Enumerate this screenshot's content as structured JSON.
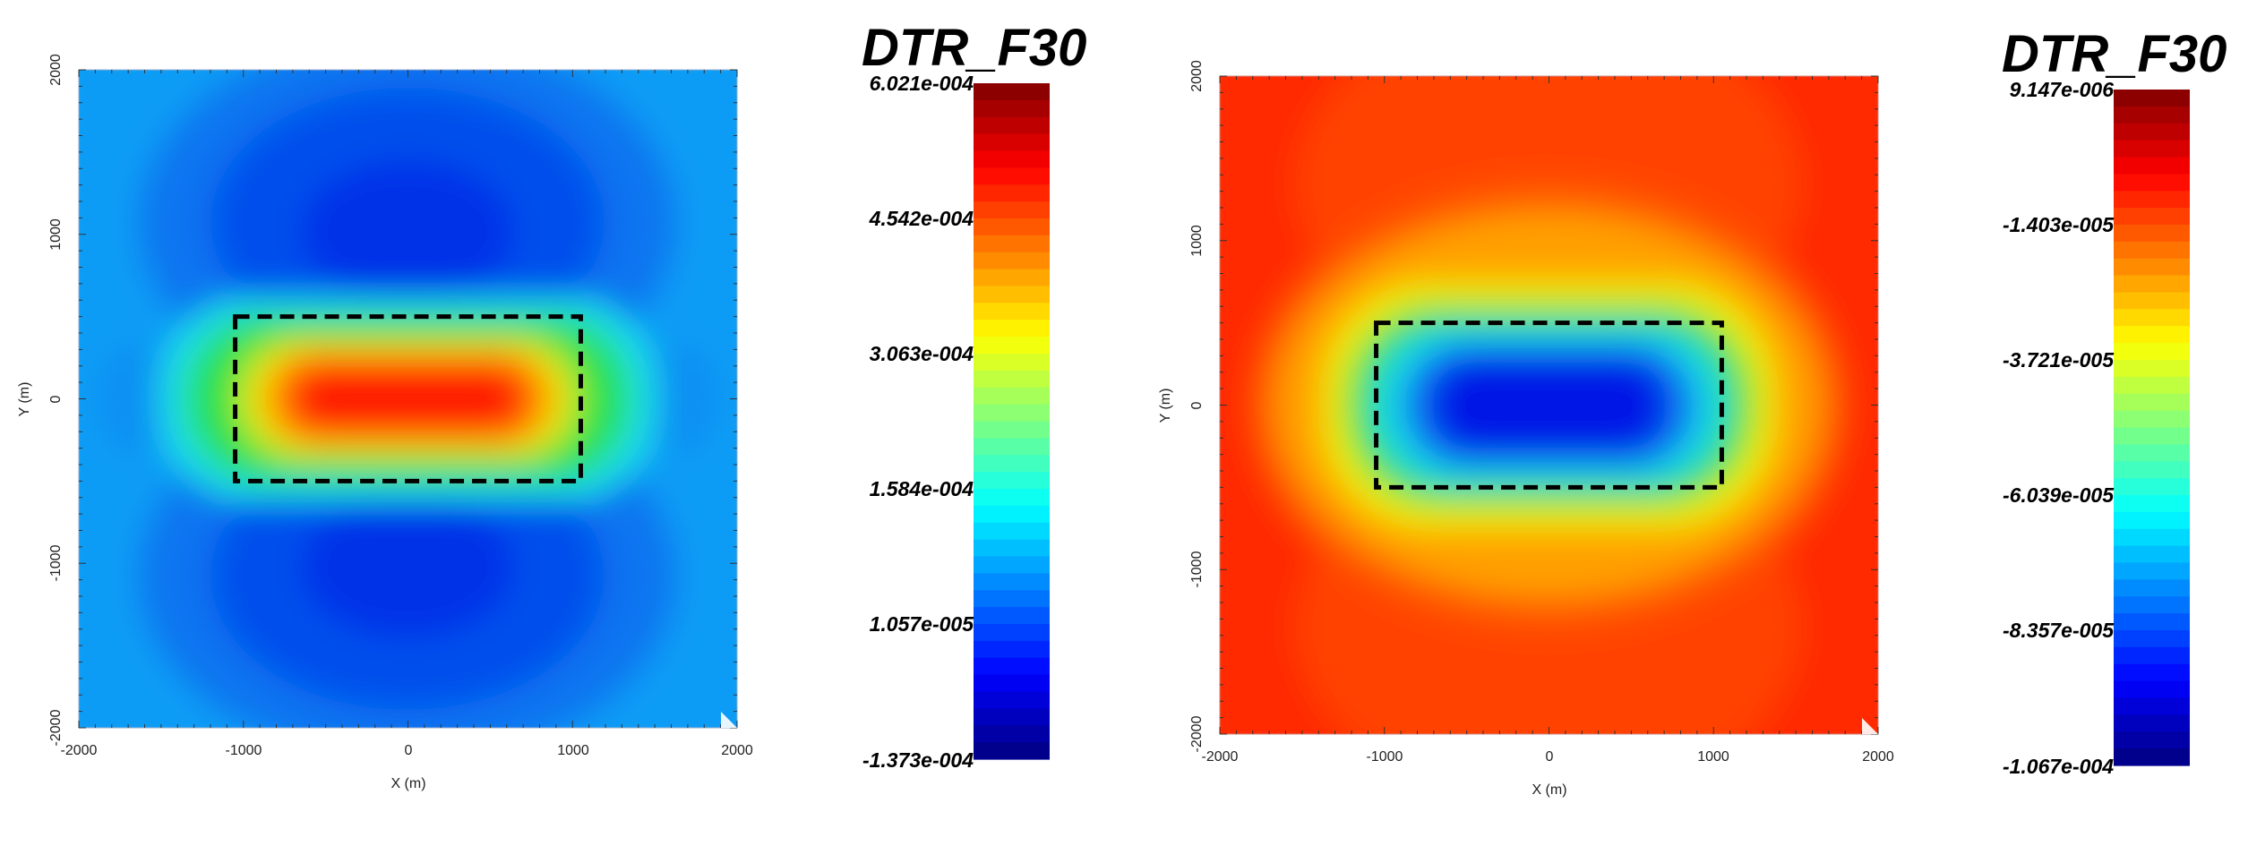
{
  "chart_data": [
    {
      "type": "heatmap",
      "title": "",
      "xlabel": "X (m)",
      "ylabel": "Y (m)",
      "xlim": [
        -2000,
        2000
      ],
      "ylim": [
        -2000,
        2000
      ],
      "x_ticks": [
        "-2000",
        "-1000",
        "0",
        "1000",
        "2000"
      ],
      "y_ticks": [
        "-2000",
        "-1000",
        "0",
        "1000",
        "2000"
      ],
      "x_tick_values": [
        -2000,
        -1000,
        0,
        1000,
        2000
      ],
      "y_tick_values": [
        -2000,
        -1000,
        0,
        1000,
        2000
      ],
      "colormap": "jet",
      "field": "positive",
      "rectangle": {
        "x": [
          -1050,
          1050
        ],
        "y": [
          -500,
          500
        ]
      },
      "colorbar": {
        "title": "DTR_F30",
        "labels": [
          "6.021e-004",
          "4.542e-004",
          "3.063e-004",
          "1.584e-004",
          "1.057e-005",
          "-1.373e-004"
        ],
        "min": -0.0001373,
        "max": 0.0006021
      }
    },
    {
      "type": "heatmap",
      "title": "",
      "xlabel": "X (m)",
      "ylabel": "Y (m)",
      "xlim": [
        -2000,
        2000
      ],
      "ylim": [
        -2000,
        2000
      ],
      "x_ticks": [
        "-2000",
        "-1000",
        "0",
        "1000",
        "2000"
      ],
      "y_ticks": [
        "-2000",
        "-1000",
        "0",
        "1000",
        "2000"
      ],
      "x_tick_values": [
        -2000,
        -1000,
        0,
        1000,
        2000
      ],
      "y_tick_values": [
        -2000,
        -1000,
        0,
        1000,
        2000
      ],
      "colormap": "jet",
      "field": "negative",
      "rectangle": {
        "x": [
          -1050,
          1050
        ],
        "y": [
          -500,
          500
        ]
      },
      "colorbar": {
        "title": "DTR_F30",
        "labels": [
          "9.147e-006",
          "-1.403e-005",
          "-3.721e-005",
          "-6.039e-005",
          "-8.357e-005",
          "-1.067e-004"
        ],
        "min": -0.0001067,
        "max": 9.147e-06
      }
    }
  ],
  "colors": {
    "rectangle_stroke": "#000000",
    "axis_line": "#333333"
  }
}
